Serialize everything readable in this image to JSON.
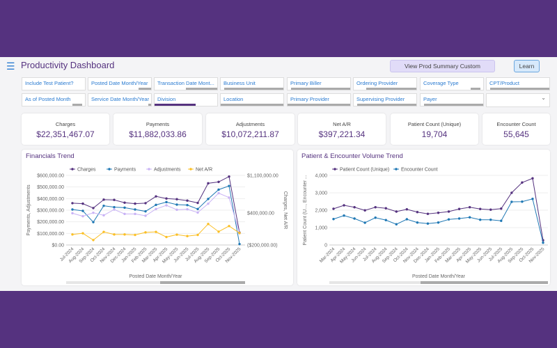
{
  "header": {
    "title": "Productivity Dashboard",
    "menu_icon": "hamburger-icon",
    "summary_button": "View Prod Summary Custom",
    "learn_button": "Learn"
  },
  "filters": [
    "Include Test Patient?",
    "Posted Date Month/Year",
    "Transaction Date Mont...",
    "Business Unit",
    "Primary Biller",
    "Ordering Provider",
    "Coverage Type",
    "CPT/Product",
    "As of Posted Month",
    "Service Date Month/Year",
    "Division",
    "Location",
    "Primary Provider",
    "Supervising Provider",
    "Payer",
    ""
  ],
  "kpis": [
    {
      "label": "Charges",
      "value": "$22,351,467.07"
    },
    {
      "label": "Payments",
      "value": "$11,882,033.86"
    },
    {
      "label": "Adjustments",
      "value": "$10,072,211.87"
    },
    {
      "label": "Net A/R",
      "value": "$397,221.34"
    },
    {
      "label": "Patient Count (Unique)",
      "value": "19,704"
    },
    {
      "label": "Encounter Count",
      "value": "55,645"
    }
  ],
  "colors": {
    "brand": "#55327f",
    "charges": "#55327f",
    "payments": "#1f78b4",
    "adjustments": "#c9b3f5",
    "net_ar": "#fbbf24",
    "link": "#2a7bd1"
  },
  "chart_data": [
    {
      "type": "line",
      "title": "Financials Trend",
      "xlabel": "Posted Date Month/Year",
      "ylabel": "Payments, Adjustments",
      "y2label": "Charges, Net A/R",
      "categories": [
        "Jul-2024",
        "Aug-2024",
        "Sep-2024",
        "Oct-2024",
        "Nov-2024",
        "Dec-2024",
        "Jan-2025",
        "Feb-2025",
        "Mar-2025",
        "Apr-2025",
        "May-2025",
        "Jun-2025",
        "Jul-2025",
        "Aug-2025",
        "Sep-2025",
        "Oct-2025",
        "Nov-2025"
      ],
      "ylim": [
        0,
        600000
      ],
      "yticks": [
        "$0.00",
        "$100,000.00",
        "$200,000.00",
        "$300,000.00",
        "$400,000.00",
        "$500,000.00",
        "$600,000.00"
      ],
      "y2lim": [
        -200000,
        1100000
      ],
      "y2ticks": [
        {
          "v": -200000,
          "t": "($200,000.00)"
        },
        {
          "v": 400000,
          "t": "$400,000.00"
        },
        {
          "v": 1100000,
          "t": "$1,100,000.00"
        }
      ],
      "legend": "top",
      "series": [
        {
          "name": "Charges",
          "axis": "right",
          "color": "#55327f",
          "values": [
            581000,
            572000,
            490000,
            647000,
            642000,
            590000,
            572000,
            581000,
            708000,
            668000,
            655000,
            629000,
            586000,
            952000,
            978000,
            1078000,
            32000
          ]
        },
        {
          "name": "Payments",
          "axis": "left",
          "color": "#1f78b4",
          "values": [
            306000,
            294000,
            197000,
            338000,
            326000,
            322000,
            306000,
            290000,
            346000,
            370000,
            348000,
            344000,
            310000,
            397000,
            477000,
            509000,
            8000
          ]
        },
        {
          "name": "Adjustments",
          "axis": "left",
          "color": "#c9b3f5",
          "values": [
            274000,
            248000,
            278000,
            256000,
            306000,
            268000,
            268000,
            252000,
            310000,
            342000,
            304000,
            308000,
            280000,
            356000,
            447000,
            409000,
            101000
          ]
        },
        {
          "name": "Net A/R",
          "axis": "right",
          "color": "#fbbf24",
          "values": [
            -3000,
            19000,
            -108000,
            45000,
            -3000,
            -3000,
            -12000,
            36000,
            45000,
            -51000,
            -7000,
            -34000,
            -12000,
            193000,
            49000,
            154000,
            23000
          ]
        }
      ]
    },
    {
      "type": "line",
      "title": "Patient & Encounter Volume Trend",
      "xlabel": "Posted Date Month/Year",
      "ylabel": "Patient Count (U..., Encounter ...",
      "categories": [
        "Mar-2024",
        "Apr-2024",
        "May-2024",
        "Jun-2024",
        "Jul-2024",
        "Aug-2024",
        "Sep-2024",
        "Oct-2024",
        "Nov-2024",
        "Dec-2024",
        "Jan-2025",
        "Feb-2025",
        "Mar-2025",
        "Apr-2025",
        "May-2025",
        "Jun-2025",
        "Jul-2025",
        "Aug-2025",
        "Sep-2025",
        "Oct-2025",
        "Nov-2025"
      ],
      "ylim": [
        0,
        4000
      ],
      "yticks": [
        "0",
        "1,000",
        "2,000",
        "3,000",
        "4,000"
      ],
      "legend": "top",
      "series": [
        {
          "name": "Patient Count (Unique)",
          "axis": "left",
          "color": "#55327f",
          "values": [
            2080,
            2280,
            2170,
            1990,
            2170,
            2110,
            1920,
            2050,
            1890,
            1790,
            1850,
            1920,
            2070,
            2170,
            2070,
            2030,
            2090,
            3000,
            3590,
            3830,
            270
          ]
        },
        {
          "name": "Encounter Count",
          "axis": "left",
          "color": "#1f78b4",
          "values": [
            1490,
            1690,
            1520,
            1280,
            1570,
            1430,
            1190,
            1480,
            1290,
            1230,
            1290,
            1470,
            1520,
            1590,
            1450,
            1450,
            1390,
            2480,
            2490,
            2650,
            130
          ]
        }
      ]
    }
  ]
}
